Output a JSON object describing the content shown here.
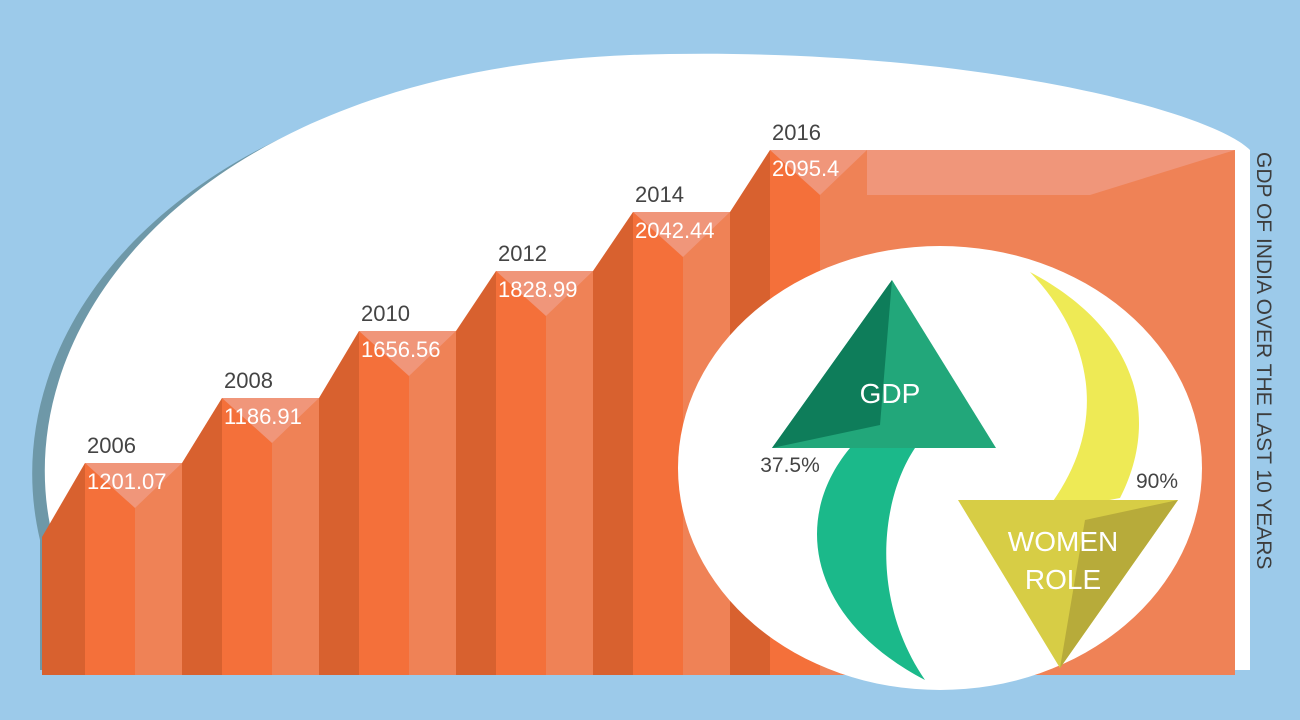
{
  "colors": {
    "background": "#9ccaea",
    "ellipse": "#ffffff",
    "ellipse_shadow": "#6e98a8",
    "bar_front": "#f4703a",
    "bar_right": "#ef8256",
    "bar_dark": "#d8612f",
    "bar_top": "#f0967a",
    "gdp_arrow_dark": "#0e7d5a",
    "gdp_arrow_light": "#22a77a",
    "gdp_arrow_tail": "#1bb98a",
    "women_arrow_tail": "#eeea55",
    "women_arrow_head": "#d7cd45",
    "women_arrow_head_dark": "#b7ab3a"
  },
  "chart_data": {
    "type": "bar",
    "title": "GDP OF INDIA OVER THE LAST 10 YEARS",
    "categories": [
      "2006",
      "2008",
      "2010",
      "2012",
      "2014",
      "2016"
    ],
    "values": [
      1201.07,
      1186.91,
      1656.56,
      1828.99,
      2042.44,
      2095.4
    ],
    "value_labels": [
      "1201.07",
      "1186.91",
      "1656.56",
      "1828.99",
      "2042.44",
      "2095.4"
    ],
    "legend": "none",
    "grid": false
  },
  "indicators": {
    "gdp": {
      "label": "GDP",
      "percent": "37.5%",
      "direction": "up"
    },
    "women": {
      "label_line1": "WOMEN",
      "label_line2": "ROLE",
      "percent": "90%",
      "direction": "down"
    }
  }
}
